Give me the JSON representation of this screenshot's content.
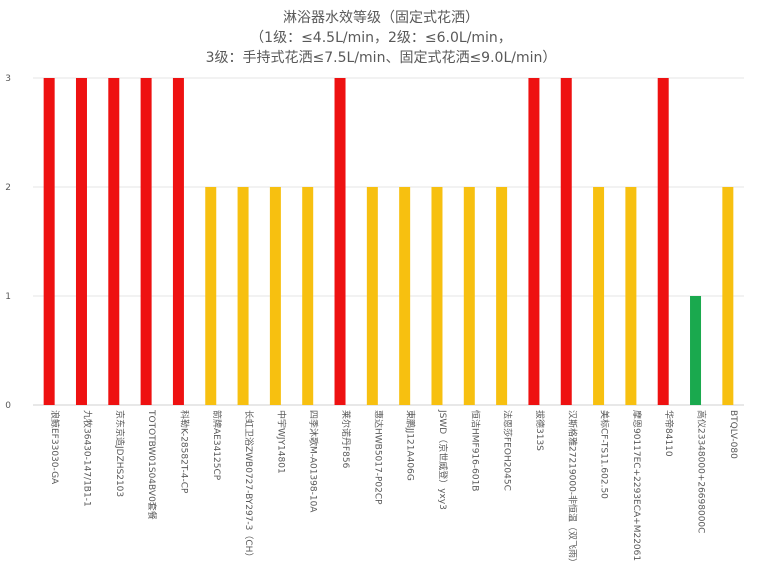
{
  "chart_data": {
    "type": "bar",
    "title_lines": [
      "淋浴器水效等级（固定式花洒）",
      "（1级：≤4.5L/min，2级：≤6.0L/min，",
      "3级：手持式花洒≤7.5L/min、固定式花洒≤9.0L/min）"
    ],
    "xlabel": "",
    "ylabel": "",
    "ylim": [
      0,
      3
    ],
    "yticks": [
      "0",
      "1",
      "2",
      "3"
    ],
    "grid": true,
    "legend": "none",
    "categories": [
      "浪鲸EF33030-GA",
      "九牧36430-147/1B1-1",
      "京东京造JDZHS2103",
      "TOTOTBW01S04BV0套餐",
      "科勒K-28582T-4-CP",
      "箭牌AE34125CP",
      "长虹卫浴ZWB0727-BY297-3（CH）",
      "中宇WJY14801",
      "四季沐歌M-A01398-10A",
      "莱尔诺丹F856",
      "惠达HWB5017-P02CP",
      "東鹏JJ121A406G",
      "JSWD（京世威登）yxy3",
      "恒洁HMF916-601B",
      "法恩莎FEOH2045C",
      "拔德313S",
      "汉斯格雅27219000-非恒温（双飞雨）",
      "美标CF-TS11.602.50",
      "摩恩90117EC+2293ECA+M22061",
      "华帝84110",
      "高仪23348000+26698000C",
      "BTQLV-080"
    ],
    "values": [
      3,
      3,
      3,
      3,
      3,
      2,
      2,
      2,
      2,
      3,
      2,
      2,
      2,
      2,
      2,
      3,
      3,
      2,
      2,
      3,
      1,
      2
    ],
    "colors": {
      "1": "#1aa94e",
      "2": "#f7c010",
      "3": "#ee1111"
    },
    "gridline_color": "#e6e6e6"
  }
}
